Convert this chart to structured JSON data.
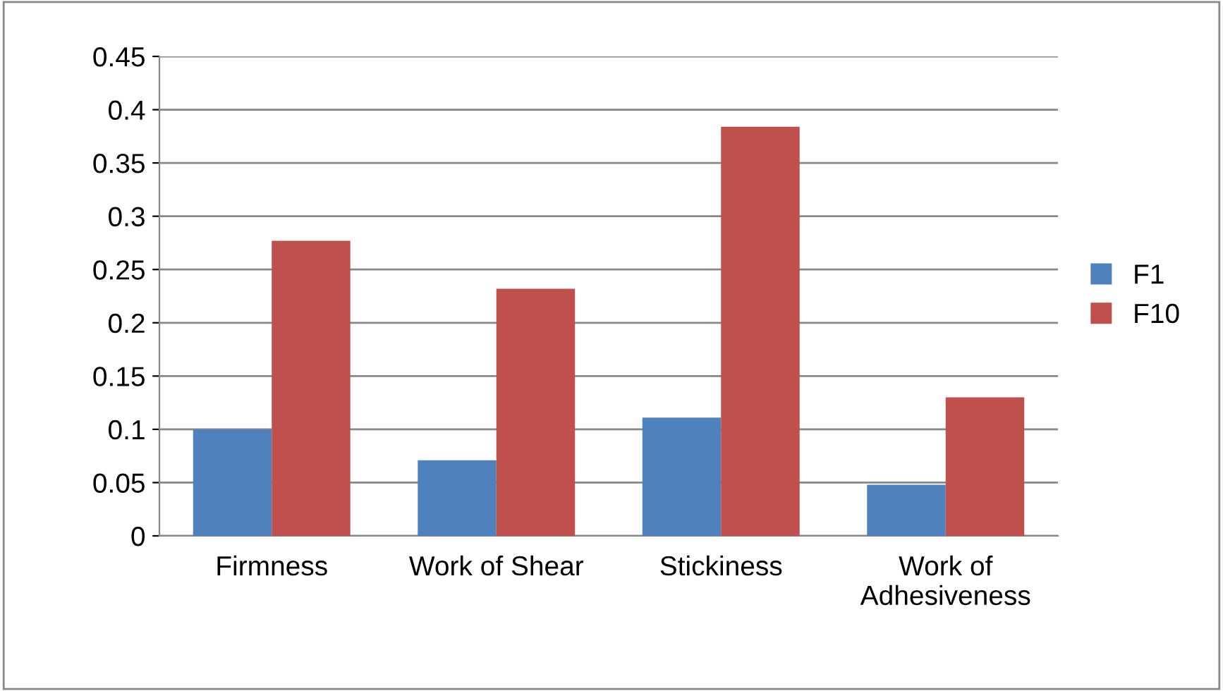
{
  "chart_data": {
    "type": "bar",
    "categories": [
      "Firmness",
      "Work of Shear",
      "Stickiness",
      "Work of\nAdhesiveness"
    ],
    "series": [
      {
        "name": "F1",
        "color": "#4f81bd",
        "values": [
          0.1,
          0.071,
          0.111,
          0.048
        ]
      },
      {
        "name": "F10",
        "color": "#c0504d",
        "values": [
          0.277,
          0.232,
          0.384,
          0.13
        ]
      }
    ],
    "ylim": [
      0,
      0.45
    ],
    "yticks": [
      0,
      0.05,
      0.1,
      0.15,
      0.2,
      0.25,
      0.3,
      0.35,
      0.4,
      0.45
    ],
    "grid": "y",
    "legend": "right"
  }
}
